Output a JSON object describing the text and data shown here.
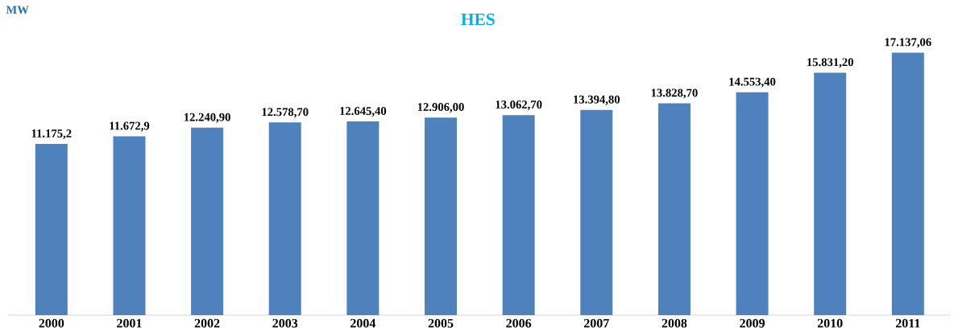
{
  "chart_data": {
    "type": "bar",
    "title": "HES",
    "ylabel": "MW",
    "color": "#4f81bd",
    "categories": [
      "2000",
      "2001",
      "2002",
      "2003",
      "2004",
      "2005",
      "2006",
      "2007",
      "2008",
      "2009",
      "2010",
      "2011"
    ],
    "values": [
      11175.2,
      11672.9,
      12240.9,
      12578.7,
      12645.4,
      12906.0,
      13062.7,
      13394.8,
      13828.7,
      14553.4,
      15831.2,
      17137.06
    ],
    "value_labels": [
      "11.175,2",
      "11.672,9",
      "12.240,90",
      "12.578,70",
      "12.645,40",
      "12.906,00",
      "13.062,70",
      "13.394,80",
      "13.828,70",
      "14.553,40",
      "15.831,20",
      "17.137,06"
    ]
  }
}
